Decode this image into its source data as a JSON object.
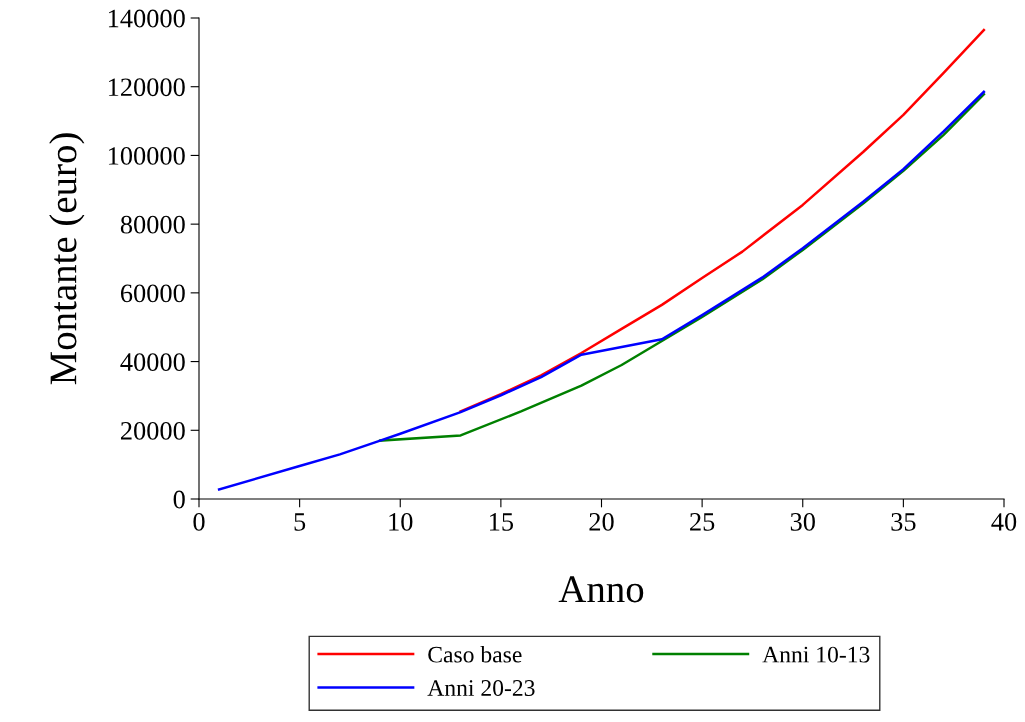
{
  "chart_data": {
    "type": "line",
    "xlabel": "Anno",
    "ylabel": "Montante (euro)",
    "xlim": [
      0,
      40
    ],
    "xticks": [
      0,
      5,
      10,
      15,
      20,
      25,
      30,
      35,
      40
    ],
    "ylim": [
      0,
      140000
    ],
    "yticks": [
      0,
      20000,
      40000,
      60000,
      80000,
      100000,
      120000,
      140000
    ],
    "grid": false,
    "legend": "bottom",
    "marker": "none",
    "line_style": "solid",
    "series": [
      {
        "name": "Caso base",
        "color": "#ff0000",
        "x": [
          13,
          15,
          17,
          19,
          21,
          23,
          25,
          27,
          30,
          33,
          35,
          37,
          39
        ],
        "values": [
          25500,
          30500,
          36000,
          42500,
          49500,
          56500,
          64300,
          72000,
          85600,
          101000,
          111800,
          124000,
          136500
        ]
      },
      {
        "name": "Anni 20-23",
        "color": "#0000ff",
        "x": [
          1,
          5,
          7,
          9,
          10,
          13,
          15,
          17,
          19,
          23,
          25,
          28,
          30,
          33,
          35,
          37,
          39
        ],
        "values": [
          2800,
          9600,
          13000,
          17000,
          19000,
          25300,
          30200,
          35500,
          42000,
          46500,
          53500,
          64500,
          73000,
          86500,
          96000,
          107000,
          118500
        ]
      },
      {
        "name": "Anni 10-13",
        "color": "#008000",
        "x": [
          9,
          13,
          16,
          19,
          21,
          23,
          25,
          28,
          30,
          33,
          35,
          37,
          39
        ],
        "values": [
          17000,
          18500,
          25500,
          33000,
          39000,
          46000,
          53000,
          64000,
          72500,
          86000,
          95500,
          106000,
          117800
        ]
      }
    ]
  }
}
